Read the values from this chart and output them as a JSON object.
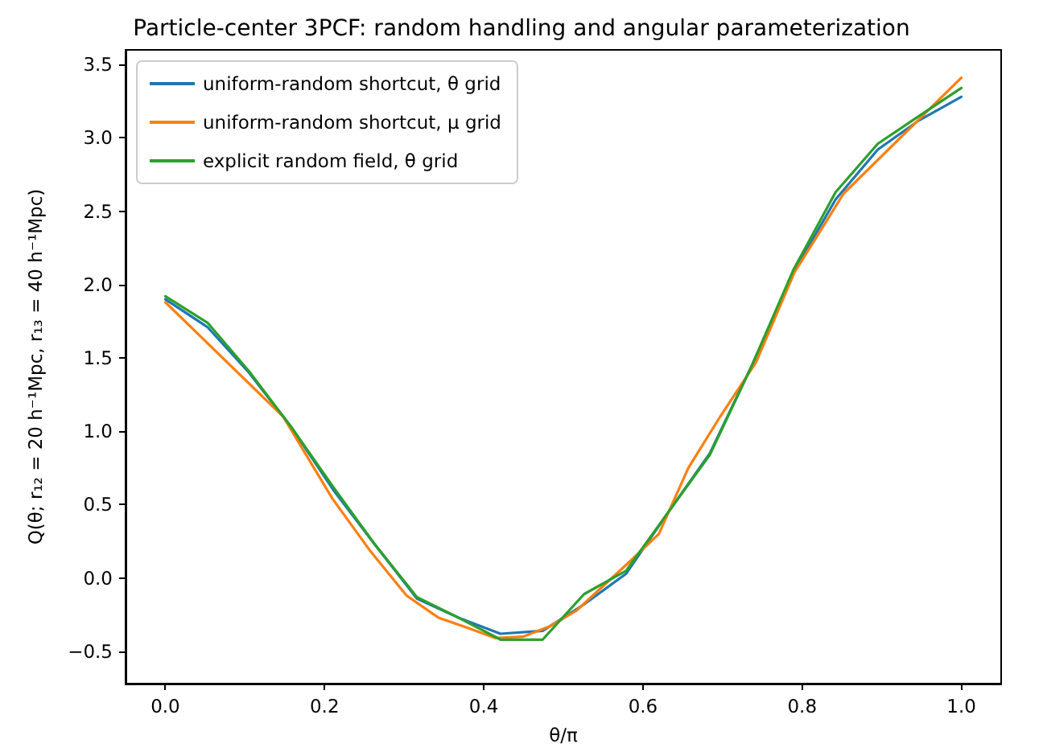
{
  "chart_data": {
    "type": "line",
    "title": "Particle-center 3PCF: random handling and angular parameterization",
    "xlabel": "θ/π",
    "ylabel": "Q(θ; r₁₂ = 20 h⁻¹Mpc, r₁₃ = 40 h⁻¹Mpc)",
    "x": [
      0,
      0.053,
      0.105,
      0.158,
      0.211,
      0.263,
      0.316,
      0.368,
      0.421,
      0.474,
      0.526,
      0.579,
      0.632,
      0.684,
      0.737,
      0.789,
      0.842,
      0.895,
      0.947,
      1
    ],
    "series": [
      {
        "name": "uniform-random shortcut, θ grid",
        "color": "#1f77b4",
        "values": [
          1.9,
          1.71,
          1.4,
          1.03,
          0.6,
          0.23,
          -0.14,
          -0.27,
          -0.38,
          -0.36,
          -0.18,
          0.03,
          0.45,
          0.85,
          1.45,
          2.08,
          2.58,
          2.92,
          3.12,
          3.28
        ]
      },
      {
        "name": "uniform-random shortcut, μ grid",
        "color": "#ff7f0e",
        "x": [
          0,
          0.148,
          0.21,
          0.258,
          0.303,
          0.343,
          0.38,
          0.415,
          0.449,
          0.483,
          0.517,
          0.551,
          0.585,
          0.62,
          0.657,
          0.697,
          0.742,
          0.79,
          0.852,
          1
        ],
        "values": [
          1.88,
          1.1,
          0.54,
          0.18,
          -0.12,
          -0.27,
          -0.34,
          -0.41,
          -0.4,
          -0.33,
          -0.22,
          -0.05,
          0.12,
          0.3,
          0.75,
          1.1,
          1.47,
          2.08,
          2.62,
          3.41
        ]
      },
      {
        "name": "explicit random field, θ grid",
        "color": "#2ca02c",
        "values": [
          1.92,
          1.74,
          1.41,
          1.03,
          0.62,
          0.23,
          -0.13,
          -0.27,
          -0.42,
          -0.42,
          -0.11,
          0.05,
          0.45,
          0.84,
          1.45,
          2.1,
          2.63,
          2.96,
          3.15,
          3.34
        ]
      }
    ],
    "xlim": [
      -0.05,
      1.05
    ],
    "xticks": [
      {
        "value": 0,
        "label": "0.0"
      },
      {
        "value": 0.2,
        "label": "0.2"
      },
      {
        "value": 0.4,
        "label": "0.4"
      },
      {
        "value": 0.6,
        "label": "0.6"
      },
      {
        "value": 0.8,
        "label": "0.8"
      },
      {
        "value": 1,
        "label": "1.0"
      }
    ],
    "ylim": [
      -0.72,
      3.6
    ],
    "yticks": [
      {
        "value": -0.5,
        "label": "−0.5"
      },
      {
        "value": 0,
        "label": "0.0"
      },
      {
        "value": 0.5,
        "label": "0.5"
      },
      {
        "value": 1,
        "label": "1.0"
      },
      {
        "value": 1.5,
        "label": "1.5"
      },
      {
        "value": 2,
        "label": "2.0"
      },
      {
        "value": 2.5,
        "label": "2.5"
      },
      {
        "value": 3,
        "label": "3.0"
      },
      {
        "value": 3.5,
        "label": "3.5"
      }
    ],
    "grid": false,
    "legend": "top left",
    "marker": "none",
    "line_style": "solid"
  }
}
